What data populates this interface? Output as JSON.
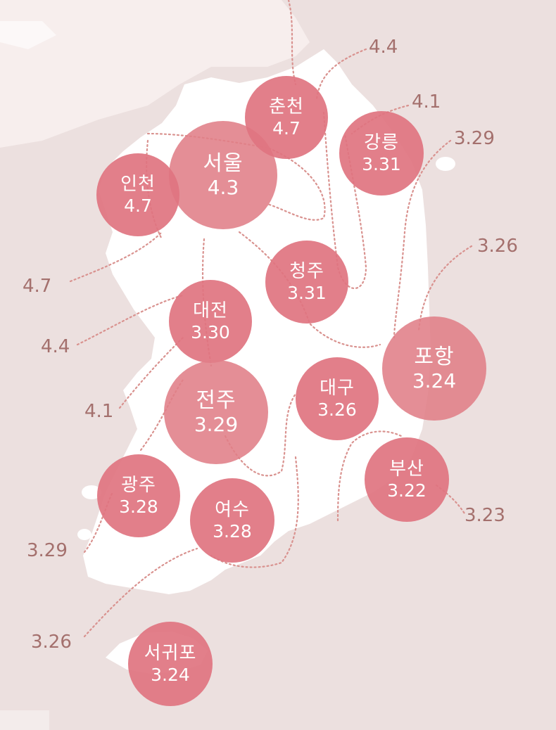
{
  "colors": {
    "background": "#ece0df",
    "sea_light": "#f7eeed",
    "land": "#ffffff",
    "bubble": "#e07e88",
    "contour": "#d9928f",
    "label": "#a4706d"
  },
  "cities": [
    {
      "key": "seoul",
      "name": "서울",
      "value": "4.3"
    },
    {
      "key": "incheon",
      "name": "인천",
      "value": "4.7"
    },
    {
      "key": "chuncheon",
      "name": "춘천",
      "value": "4.7"
    },
    {
      "key": "gangneung",
      "name": "강릉",
      "value": "3.31"
    },
    {
      "key": "cheongju",
      "name": "청주",
      "value": "3.31"
    },
    {
      "key": "daejeon",
      "name": "대전",
      "value": "3.30"
    },
    {
      "key": "jeonju",
      "name": "전주",
      "value": "3.29"
    },
    {
      "key": "daegu",
      "name": "대구",
      "value": "3.26"
    },
    {
      "key": "pohang",
      "name": "포항",
      "value": "3.24"
    },
    {
      "key": "busan",
      "name": "부산",
      "value": "3.22"
    },
    {
      "key": "gwangju",
      "name": "광주",
      "value": "3.28"
    },
    {
      "key": "yeosu",
      "name": "여수",
      "value": "3.28"
    },
    {
      "key": "seogwipo",
      "name": "서귀포",
      "value": "3.24"
    }
  ],
  "contour_labels": [
    {
      "key": "top-4-4",
      "text": "4.4"
    },
    {
      "key": "top-4-1",
      "text": "4.1"
    },
    {
      "key": "right-3-29",
      "text": "3.29"
    },
    {
      "key": "right-3-26",
      "text": "3.26"
    },
    {
      "key": "right-3-23",
      "text": "3.23"
    },
    {
      "key": "left-4-7",
      "text": "4.7"
    },
    {
      "key": "left-4-4",
      "text": "4.4"
    },
    {
      "key": "left-4-1",
      "text": "4.1"
    },
    {
      "key": "left-3-29",
      "text": "3.29"
    },
    {
      "key": "left-3-26",
      "text": "3.26"
    }
  ]
}
